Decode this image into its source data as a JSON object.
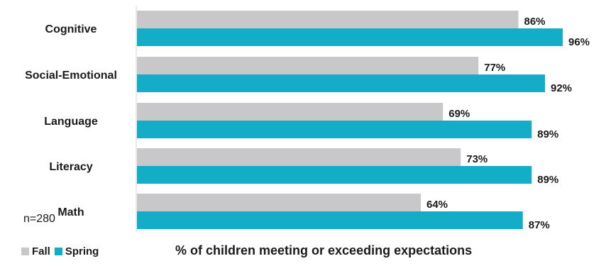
{
  "chart_data": {
    "type": "bar",
    "orientation": "horizontal",
    "categories": [
      "Cognitive",
      "Social-Emotional",
      "Language",
      "Literacy",
      "Math"
    ],
    "series": [
      {
        "name": "Fall",
        "values": [
          86,
          77,
          69,
          73,
          64
        ],
        "color": "#c8c8ca"
      },
      {
        "name": "Spring",
        "values": [
          96,
          92,
          89,
          89,
          87
        ],
        "color": "#13adc7"
      }
    ],
    "value_suffix": "%",
    "xlim": [
      0,
      100
    ],
    "xlabel": "% of children meeting or exceeding expectations",
    "note": "n=280",
    "legend_position": "bottom-left",
    "grid": false
  }
}
